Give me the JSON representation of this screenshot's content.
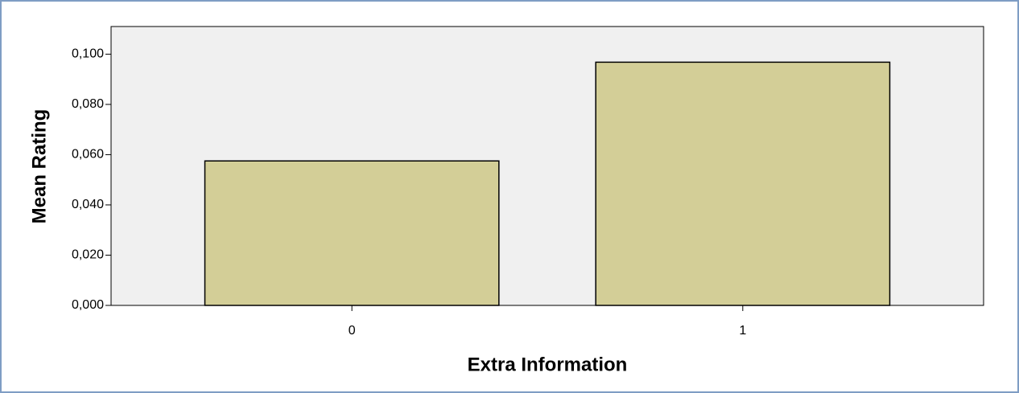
{
  "chart_data": {
    "type": "bar",
    "x_label": "Extra Information",
    "y_label": "Mean Rating",
    "categories": [
      "0",
      "1"
    ],
    "values": [
      0.0575,
      0.0968
    ],
    "color": "#d3ce97",
    "ylim": [
      0,
      0.111
    ],
    "yticks": [
      {
        "value": 0,
        "label": "0,000"
      },
      {
        "value": 0.02,
        "label": "0,020"
      },
      {
        "value": 0.04,
        "label": "0,040"
      },
      {
        "value": 0.06,
        "label": "0,060"
      },
      {
        "value": 0.08,
        "label": "0,080"
      },
      {
        "value": 0.1,
        "label": "0,100"
      }
    ],
    "grid": false
  }
}
